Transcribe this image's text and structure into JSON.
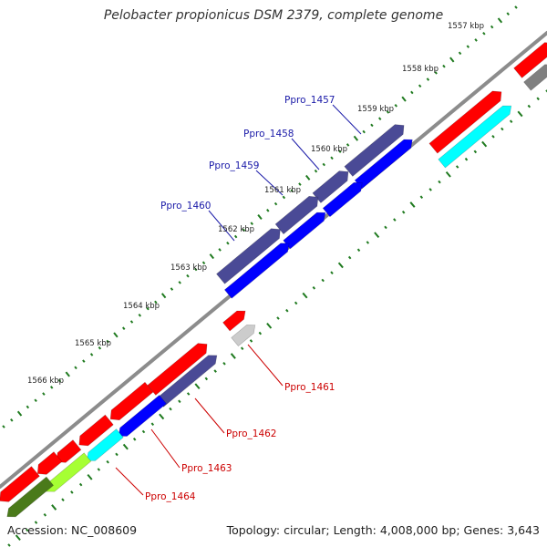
{
  "title": "Pelobacter propionicus DSM 2379, complete genome",
  "footer": {
    "accession": "Accession: NC_008609",
    "stats": "Topology: circular; Length: 4,008,000 bp; Genes: 3,643"
  },
  "kbp_labels": [
    "1557 kbp",
    "1558 kbp",
    "1559 kbp",
    "1560 kbp",
    "1561 kbp",
    "1562 kbp",
    "1563 kbp",
    "1564 kbp",
    "1565 kbp",
    "1566 kbp"
  ],
  "gene_labels_upper": [
    "Ppro_1457",
    "Ppro_1458",
    "Ppro_1459",
    "Ppro_1460"
  ],
  "gene_labels_lower": [
    "Ppro_1461",
    "Ppro_1462",
    "Ppro_1463",
    "Ppro_1464"
  ],
  "colors": {
    "upper_label": "#1a1aa8",
    "lower_label": "#cc0000",
    "backbone": "#8c8c8c",
    "tick": "#1f7a1f",
    "cds_red": "#ff0000",
    "cds_navy": "#4a4a96",
    "cds_blue": "#0000ff",
    "cds_cyan": "#00ffff",
    "cds_lime": "#a6ff33",
    "cds_olive": "#4a7a1a",
    "cds_gray": "#808080",
    "cds_lightgray": "#cccccc"
  }
}
